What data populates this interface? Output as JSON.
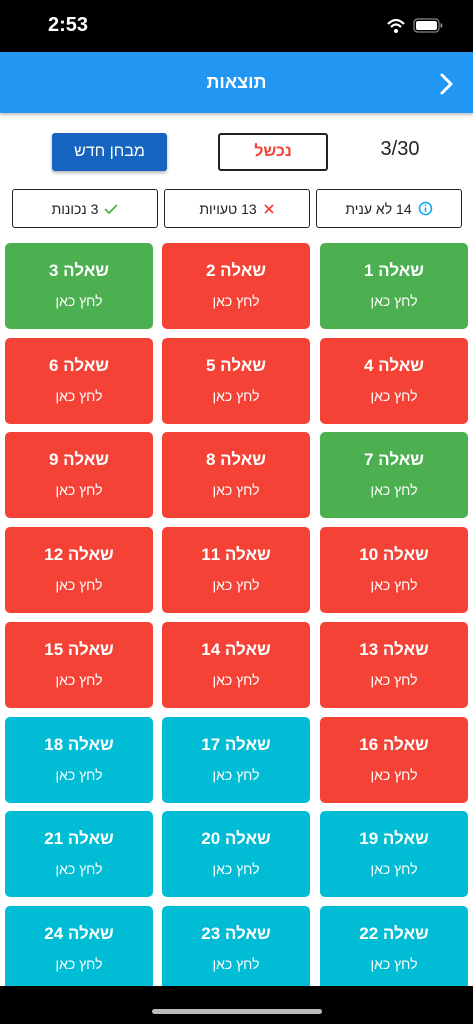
{
  "status_bar": {
    "time": "2:53"
  },
  "header": {
    "title": "תוצאות"
  },
  "toolbar": {
    "score": "3/30",
    "result": "נכשל",
    "new_test": "מבחן חדש"
  },
  "summary": {
    "unanswered": "14 לא ענית",
    "wrong": "13 טעויות",
    "correct": "3 נכונות"
  },
  "questions": [
    {
      "label": "שאלה 1",
      "hint": "לחץ כאן",
      "color": "#4caf50"
    },
    {
      "label": "שאלה 2",
      "hint": "לחץ כאן",
      "color": "#f44336"
    },
    {
      "label": "שאלה 3",
      "hint": "לחץ כאן",
      "color": "#4caf50"
    },
    {
      "label": "שאלה 4",
      "hint": "לחץ כאן",
      "color": "#f44336"
    },
    {
      "label": "שאלה 5",
      "hint": "לחץ כאן",
      "color": "#f44336"
    },
    {
      "label": "שאלה 6",
      "hint": "לחץ כאן",
      "color": "#f44336"
    },
    {
      "label": "שאלה 7",
      "hint": "לחץ כאן",
      "color": "#4caf50"
    },
    {
      "label": "שאלה 8",
      "hint": "לחץ כאן",
      "color": "#f44336"
    },
    {
      "label": "שאלה 9",
      "hint": "לחץ כאן",
      "color": "#f44336"
    },
    {
      "label": "שאלה 10",
      "hint": "לחץ כאן",
      "color": "#f44336"
    },
    {
      "label": "שאלה 11",
      "hint": "לחץ כאן",
      "color": "#f44336"
    },
    {
      "label": "שאלה 12",
      "hint": "לחץ כאן",
      "color": "#f44336"
    },
    {
      "label": "שאלה 13",
      "hint": "לחץ כאן",
      "color": "#f44336"
    },
    {
      "label": "שאלה 14",
      "hint": "לחץ כאן",
      "color": "#f44336"
    },
    {
      "label": "שאלה 15",
      "hint": "לחץ כאן",
      "color": "#f44336"
    },
    {
      "label": "שאלה 16",
      "hint": "לחץ כאן",
      "color": "#f44336"
    },
    {
      "label": "שאלה 17",
      "hint": "לחץ כאן",
      "color": "#00bcd4"
    },
    {
      "label": "שאלה 18",
      "hint": "לחץ כאן",
      "color": "#00bcd4"
    },
    {
      "label": "שאלה 19",
      "hint": "לחץ כאן",
      "color": "#00bcd4"
    },
    {
      "label": "שאלה 20",
      "hint": "לחץ כאן",
      "color": "#00bcd4"
    },
    {
      "label": "שאלה 21",
      "hint": "לחץ כאן",
      "color": "#00bcd4"
    },
    {
      "label": "שאלה 22",
      "hint": "לחץ כאן",
      "color": "#00bcd4"
    },
    {
      "label": "שאלה 23",
      "hint": "לחץ כאן",
      "color": "#00bcd4"
    },
    {
      "label": "שאלה 24",
      "hint": "לחץ כאן",
      "color": "#00bcd4"
    }
  ]
}
